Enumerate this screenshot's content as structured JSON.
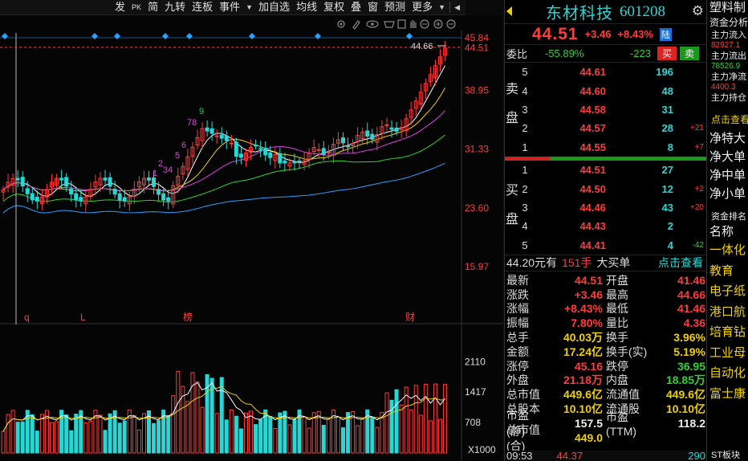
{
  "toolbar": {
    "items": [
      "发",
      "PK",
      "简",
      "九转",
      "连板",
      "事件",
      "加自选",
      "均线",
      "复权",
      "叠",
      "窗",
      "预测",
      "更多"
    ]
  },
  "chart": {
    "price_marker": "44.66",
    "candle_labels": [
      "1",
      "2",
      "34",
      "5",
      "6",
      "78",
      "9"
    ],
    "event_markers": [
      "q",
      "L",
      "榜",
      "财"
    ],
    "volume_unit": "X1000"
  },
  "chart_data": {
    "type": "candlestick",
    "price_axis_ticks": [
      "45.84",
      "44.51",
      "38.95",
      "31.33",
      "23.60",
      "15.97"
    ],
    "volume_axis_ticks": [
      "2110",
      "1417",
      "708"
    ],
    "current_price": 44.51,
    "last_high": 44.66,
    "ylim": [
      15.97,
      45.84
    ]
  },
  "quote": {
    "name": "东材科技",
    "code": "601208",
    "price": "44.51",
    "change": "+3.46",
    "change_pct": "+8.43%",
    "exchange_badge": "陆",
    "weibi_label": "委比",
    "weibi_pct": "-55.89%",
    "weicha": "-223",
    "buy_label": "买",
    "sell_label": "卖",
    "sell_side_label": [
      "卖",
      "盘"
    ],
    "buy_side_label": [
      "买",
      "盘"
    ],
    "asks": [
      {
        "level": "5",
        "price": "44.61",
        "vol": "196",
        "chg": ""
      },
      {
        "level": "4",
        "price": "44.60",
        "vol": "48",
        "chg": ""
      },
      {
        "level": "3",
        "price": "44.58",
        "vol": "31",
        "chg": ""
      },
      {
        "level": "2",
        "price": "44.57",
        "vol": "28",
        "chg": "+21"
      },
      {
        "level": "1",
        "price": "44.55",
        "vol": "8",
        "chg": "+7"
      }
    ],
    "bids": [
      {
        "level": "1",
        "price": "44.51",
        "vol": "27",
        "chg": ""
      },
      {
        "level": "2",
        "price": "44.50",
        "vol": "12",
        "chg": "+2"
      },
      {
        "level": "3",
        "price": "44.46",
        "vol": "43",
        "chg": "+20"
      },
      {
        "level": "4",
        "price": "44.43",
        "vol": "2",
        "chg": ""
      },
      {
        "level": "5",
        "price": "44.41",
        "vol": "4",
        "chg": "-42"
      }
    ],
    "trade": {
      "price": "44.20元有",
      "hands": "151手",
      "desc": "大买单",
      "link": "点击查看"
    },
    "stats": [
      {
        "l": "最新",
        "lv": "44.51",
        "lc": "red",
        "r": "开盘",
        "rv": "41.46",
        "rc": "red"
      },
      {
        "l": "涨跌",
        "lv": "+3.46",
        "lc": "red",
        "r": "最高",
        "rv": "44.66",
        "rc": "red"
      },
      {
        "l": "涨幅",
        "lv": "+8.43%",
        "lc": "red",
        "r": "最低",
        "rv": "41.46",
        "rc": "red"
      },
      {
        "l": "振幅",
        "lv": "7.80%",
        "lc": "red",
        "r": "量比",
        "rv": "4.36",
        "rc": "red"
      },
      {
        "l": "总手",
        "lv": "40.03万",
        "lc": "yel",
        "r": "换手",
        "rv": "3.96%",
        "rc": "yel"
      },
      {
        "l": "金额",
        "lv": "17.24亿",
        "lc": "yel",
        "r": "换手(实)",
        "rv": "5.19%",
        "rc": "yel"
      },
      {
        "l": "涨停",
        "lv": "45.16",
        "lc": "red",
        "r": "跌停",
        "rv": "36.95",
        "rc": "grn"
      },
      {
        "l": "外盘",
        "lv": "21.18万",
        "lc": "red",
        "r": "内盘",
        "rv": "18.85万",
        "rc": "grn"
      },
      {
        "l": "总市值",
        "lv": "449.6亿",
        "lc": "yel",
        "r": "流通值",
        "rv": "449.6亿",
        "rc": "yel"
      },
      {
        "l": "总股本",
        "lv": "10.10亿",
        "lc": "yel",
        "r": "流通股",
        "rv": "10.10亿",
        "rc": "yel"
      },
      {
        "l": "市盈(静)",
        "lv": "157.5",
        "lc": "wht",
        "r": "市盈(TTM)",
        "rv": "118.2",
        "rc": "wht"
      },
      {
        "l": "总市值(合)",
        "lv": "449.0",
        "lc": "yel",
        "r": "",
        "rv": "",
        "rc": "wht"
      }
    ],
    "bottom": {
      "time": "09:53",
      "price": "44.37",
      "vol": "290"
    }
  },
  "strip": {
    "title": "塑料制",
    "fund_title": "资金分析",
    "rows": [
      {
        "label": "主力流入",
        "value": "82927.1",
        "color": "#ff3b3b"
      },
      {
        "label": "主力流出",
        "value": "78526.9",
        "color": "#2bd32b"
      },
      {
        "label": "主力净流",
        "value": "4400.3",
        "color": "#ff3b3b"
      },
      {
        "label": "主力持仓",
        "value": "",
        "color": "#ff3b3b"
      }
    ],
    "link": "点击查看",
    "net": [
      "净特大",
      "净大单",
      "净中单",
      "净小单"
    ],
    "rank_title": "资金排名",
    "rank_header": "名称",
    "ranks": [
      "一体化",
      "教育",
      "电子纸",
      "港口航",
      "培育钻",
      "工业母",
      "自动化",
      "富士康"
    ],
    "bottom": "ST板块"
  }
}
